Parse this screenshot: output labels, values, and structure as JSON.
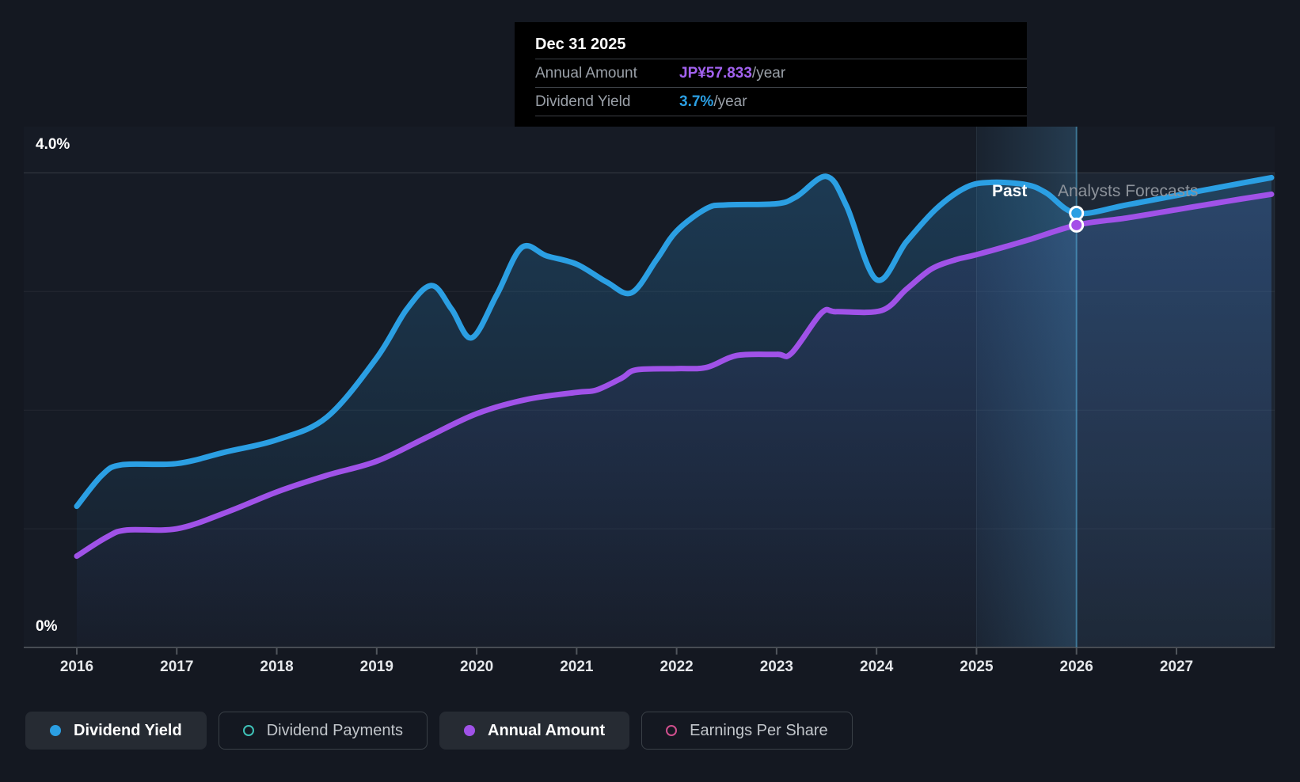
{
  "tooltip": {
    "date": "Dec 31 2025",
    "rows": [
      {
        "label": "Annual Amount",
        "value": "JP¥57.833",
        "suffix": "/year",
        "value_color": "#a362f0"
      },
      {
        "label": "Dividend Yield",
        "value": "3.7%",
        "suffix": "/year",
        "value_color": "#2b9fe3"
      }
    ]
  },
  "axis": {
    "y_top_label": "4.0%",
    "y_bottom_label": "0%",
    "years": [
      "2016",
      "2017",
      "2018",
      "2019",
      "2020",
      "2021",
      "2022",
      "2023",
      "2024",
      "2025",
      "2026",
      "2027"
    ]
  },
  "annotations": {
    "past": "Past",
    "forecast": "Analysts Forecasts"
  },
  "legend": [
    {
      "label": "Dividend Yield",
      "color": "#2b9fe3",
      "style": "filled",
      "active": true
    },
    {
      "label": "Dividend Payments",
      "color": "#3fc1b7",
      "style": "hollow",
      "active": false
    },
    {
      "label": "Annual Amount",
      "color": "#a052e8",
      "style": "filled",
      "active": true
    },
    {
      "label": "Earnings Per Share",
      "color": "#cf4f8d",
      "style": "hollow",
      "active": false
    }
  ],
  "chart_data": {
    "type": "line",
    "x_range": [
      2016,
      2028
    ],
    "y_axis": {
      "unit": "%",
      "min": 0,
      "max": 4.0,
      "top_tick_label": "4.0%",
      "bottom_tick_label": "0%",
      "gridlines_pct": [
        1,
        2,
        3,
        4
      ]
    },
    "grid": "horizontal-only",
    "legend_position": "bottom-left",
    "past_forecast_divider_year": 2026,
    "highlight_band_years": [
      2025,
      2026
    ],
    "series": [
      {
        "name": "Dividend Yield",
        "color": "#2b9fe3",
        "unit": "%",
        "points": [
          [
            2016.0,
            1.19
          ],
          [
            2016.25,
            1.45
          ],
          [
            2016.45,
            1.54
          ],
          [
            2017.0,
            1.55
          ],
          [
            2017.5,
            1.65
          ],
          [
            2018.0,
            1.75
          ],
          [
            2018.5,
            1.94
          ],
          [
            2019.0,
            2.44
          ],
          [
            2019.3,
            2.85
          ],
          [
            2019.55,
            3.05
          ],
          [
            2019.75,
            2.85
          ],
          [
            2019.95,
            2.61
          ],
          [
            2020.2,
            2.97
          ],
          [
            2020.45,
            3.37
          ],
          [
            2020.7,
            3.3
          ],
          [
            2021.0,
            3.23
          ],
          [
            2021.3,
            3.08
          ],
          [
            2021.55,
            2.99
          ],
          [
            2021.8,
            3.27
          ],
          [
            2022.0,
            3.51
          ],
          [
            2022.3,
            3.7
          ],
          [
            2022.5,
            3.73
          ],
          [
            2023.0,
            3.74
          ],
          [
            2023.2,
            3.8
          ],
          [
            2023.5,
            3.97
          ],
          [
            2023.7,
            3.72
          ],
          [
            2024.0,
            3.1
          ],
          [
            2024.3,
            3.42
          ],
          [
            2024.6,
            3.7
          ],
          [
            2024.9,
            3.88
          ],
          [
            2025.15,
            3.92
          ],
          [
            2025.5,
            3.9
          ],
          [
            2025.7,
            3.83
          ],
          [
            2026.0,
            3.66
          ],
          [
            2026.5,
            3.73
          ],
          [
            2027.0,
            3.81
          ],
          [
            2027.5,
            3.89
          ],
          [
            2027.95,
            3.96
          ]
        ]
      },
      {
        "name": "Annual Amount",
        "color": "#a052e8",
        "unit": "JP¥/year (plotted against yield axis)",
        "tooltip_point": {
          "date": "Dec 31 2025",
          "value": "JP¥57.833/year"
        },
        "points": [
          [
            2016.0,
            0.77
          ],
          [
            2016.3,
            0.93
          ],
          [
            2016.5,
            0.99
          ],
          [
            2017.0,
            1.0
          ],
          [
            2017.5,
            1.14
          ],
          [
            2018.0,
            1.31
          ],
          [
            2018.5,
            1.45
          ],
          [
            2019.0,
            1.57
          ],
          [
            2019.5,
            1.77
          ],
          [
            2020.0,
            1.97
          ],
          [
            2020.5,
            2.09
          ],
          [
            2021.0,
            2.15
          ],
          [
            2021.2,
            2.17
          ],
          [
            2021.45,
            2.27
          ],
          [
            2021.6,
            2.34
          ],
          [
            2022.0,
            2.35
          ],
          [
            2022.3,
            2.36
          ],
          [
            2022.6,
            2.46
          ],
          [
            2023.0,
            2.47
          ],
          [
            2023.15,
            2.48
          ],
          [
            2023.45,
            2.82
          ],
          [
            2023.6,
            2.83
          ],
          [
            2024.05,
            2.84
          ],
          [
            2024.3,
            3.02
          ],
          [
            2024.55,
            3.19
          ],
          [
            2024.8,
            3.27
          ],
          [
            2025.0,
            3.31
          ],
          [
            2025.5,
            3.43
          ],
          [
            2026.0,
            3.56
          ],
          [
            2026.5,
            3.62
          ],
          [
            2027.0,
            3.69
          ],
          [
            2027.5,
            3.76
          ],
          [
            2027.95,
            3.82
          ]
        ]
      }
    ],
    "markers": [
      {
        "series": "Dividend Yield",
        "year": 2026,
        "pct": 3.66,
        "color": "#2b9fe3"
      },
      {
        "series": "Annual Amount",
        "year": 2026,
        "pct": 3.56,
        "color": "#a44fe8"
      }
    ],
    "hidden_series_in_legend": [
      "Dividend Payments",
      "Earnings Per Share"
    ]
  }
}
